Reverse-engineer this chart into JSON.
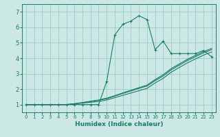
{
  "background_color": "#cce8e4",
  "grid_color": "#99cccc",
  "line_color": "#1a7a6a",
  "xlabel": "Humidex (Indice chaleur)",
  "xlim": [
    -0.5,
    23.5
  ],
  "ylim": [
    0.5,
    7.5
  ],
  "xticks": [
    0,
    1,
    2,
    3,
    4,
    5,
    6,
    7,
    8,
    9,
    10,
    11,
    12,
    13,
    14,
    15,
    16,
    17,
    18,
    19,
    20,
    21,
    22,
    23
  ],
  "yticks": [
    1,
    2,
    3,
    4,
    5,
    6,
    7
  ],
  "series": [
    {
      "x": [
        0,
        1,
        2,
        3,
        4,
        5,
        6,
        7,
        8,
        9,
        10,
        11,
        12,
        13,
        14,
        15,
        16,
        17,
        18,
        19,
        20,
        21,
        22,
        23
      ],
      "y": [
        1.0,
        1.0,
        1.0,
        1.0,
        1.0,
        1.0,
        1.0,
        1.0,
        1.0,
        1.0,
        2.5,
        5.5,
        6.2,
        6.4,
        6.75,
        6.5,
        4.55,
        5.1,
        4.3,
        4.3,
        4.3,
        4.3,
        4.5,
        4.1
      ],
      "marker": true
    },
    {
      "x": [
        0,
        1,
        2,
        3,
        4,
        5,
        6,
        7,
        8,
        9,
        10,
        11,
        12,
        13,
        14,
        15,
        16,
        17,
        18,
        19,
        20,
        21,
        22,
        23
      ],
      "y": [
        1.0,
        1.0,
        1.0,
        1.0,
        1.0,
        1.0,
        1.05,
        1.1,
        1.15,
        1.2,
        1.3,
        1.45,
        1.6,
        1.75,
        1.9,
        2.05,
        2.4,
        2.7,
        3.1,
        3.4,
        3.7,
        3.95,
        4.2,
        4.4
      ],
      "marker": false
    },
    {
      "x": [
        0,
        1,
        2,
        3,
        4,
        5,
        6,
        7,
        8,
        9,
        10,
        11,
        12,
        13,
        14,
        15,
        16,
        17,
        18,
        19,
        20,
        21,
        22,
        23
      ],
      "y": [
        1.0,
        1.0,
        1.0,
        1.0,
        1.0,
        1.0,
        1.05,
        1.12,
        1.2,
        1.28,
        1.38,
        1.55,
        1.72,
        1.88,
        2.05,
        2.2,
        2.55,
        2.85,
        3.25,
        3.55,
        3.85,
        4.1,
        4.35,
        4.55
      ],
      "marker": false
    },
    {
      "x": [
        0,
        1,
        2,
        3,
        4,
        5,
        6,
        7,
        8,
        9,
        10,
        11,
        12,
        13,
        14,
        15,
        16,
        17,
        18,
        19,
        20,
        21,
        22,
        23
      ],
      "y": [
        1.0,
        1.0,
        1.0,
        1.0,
        1.0,
        1.0,
        1.06,
        1.13,
        1.22,
        1.3,
        1.42,
        1.58,
        1.76,
        1.93,
        2.1,
        2.26,
        2.62,
        2.93,
        3.33,
        3.63,
        3.93,
        4.18,
        4.43,
        4.63
      ],
      "marker": false
    }
  ]
}
